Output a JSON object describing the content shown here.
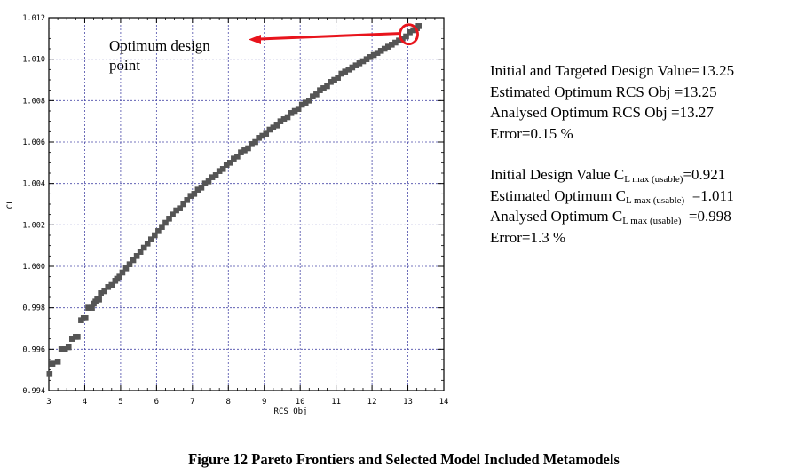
{
  "chart_data": {
    "type": "scatter",
    "title": "",
    "xlabel": "RCS_Obj",
    "ylabel": "CL",
    "xlim": [
      3,
      14
    ],
    "ylim": [
      0.994,
      1.012
    ],
    "xticks": [
      "3",
      "4",
      "5",
      "6",
      "7",
      "8",
      "9",
      "10",
      "11",
      "12",
      "13",
      "14"
    ],
    "yticks": [
      "0.994",
      "0.996",
      "0.998",
      "1.000",
      "1.002",
      "1.004",
      "1.006",
      "1.008",
      "1.010",
      "1.012"
    ],
    "grid": true,
    "series": [
      {
        "marker": "square",
        "color": "#555555",
        "x": [
          3.02,
          3.1,
          3.25,
          3.35,
          3.45,
          3.55,
          3.65,
          3.75,
          3.8,
          3.9,
          3.97,
          4.02,
          4.1,
          4.2,
          4.25,
          4.3,
          4.35,
          4.4,
          4.45,
          4.55,
          4.65,
          4.75,
          4.85,
          4.9,
          4.97,
          5.05,
          5.15,
          5.25,
          5.35,
          5.45,
          5.55,
          5.65,
          5.75,
          5.85,
          5.95,
          6.05,
          6.15,
          6.25,
          6.35,
          6.45,
          6.55,
          6.65,
          6.75,
          6.85,
          6.95,
          7.05,
          7.15,
          7.25,
          7.35,
          7.45,
          7.55,
          7.65,
          7.75,
          7.85,
          7.95,
          8.05,
          8.15,
          8.25,
          8.35,
          8.45,
          8.55,
          8.65,
          8.75,
          8.85,
          8.95,
          9.05,
          9.15,
          9.25,
          9.35,
          9.45,
          9.55,
          9.65,
          9.75,
          9.85,
          9.95,
          10.05,
          10.15,
          10.25,
          10.35,
          10.45,
          10.55,
          10.65,
          10.75,
          10.85,
          10.95,
          11.05,
          11.15,
          11.25,
          11.35,
          11.45,
          11.55,
          11.65,
          11.75,
          11.85,
          11.95,
          12.05,
          12.15,
          12.25,
          12.35,
          12.45,
          12.55,
          12.65,
          12.75,
          12.85,
          12.95,
          13.05,
          13.15,
          13.25,
          13.3
        ],
        "y": [
          0.9948,
          0.9953,
          0.9954,
          0.996,
          0.996,
          0.9961,
          0.9965,
          0.9966,
          0.9966,
          0.9974,
          0.9975,
          0.9975,
          0.998,
          0.998,
          0.9982,
          0.9983,
          0.9984,
          0.9984,
          0.9987,
          0.9988,
          0.999,
          0.9991,
          0.9993,
          0.9994,
          0.9995,
          0.9997,
          0.9999,
          1.0001,
          1.0003,
          1.0005,
          1.0007,
          1.0009,
          1.0011,
          1.0013,
          1.0015,
          1.0017,
          1.0019,
          1.0021,
          1.0023,
          1.0025,
          1.0027,
          1.0028,
          1.003,
          1.0032,
          1.0034,
          1.0035,
          1.0037,
          1.0038,
          1.004,
          1.0041,
          1.0043,
          1.0044,
          1.0046,
          1.0047,
          1.0049,
          1.005,
          1.0052,
          1.0053,
          1.0055,
          1.0056,
          1.0057,
          1.0059,
          1.006,
          1.0062,
          1.0063,
          1.0064,
          1.0066,
          1.0067,
          1.0068,
          1.007,
          1.0071,
          1.0072,
          1.0074,
          1.0075,
          1.0076,
          1.0078,
          1.0079,
          1.008,
          1.0082,
          1.0083,
          1.0085,
          1.0086,
          1.0087,
          1.0089,
          1.009,
          1.0091,
          1.0093,
          1.0094,
          1.0095,
          1.0096,
          1.0097,
          1.0098,
          1.0099,
          1.01,
          1.0101,
          1.0102,
          1.0103,
          1.0104,
          1.0105,
          1.0106,
          1.0107,
          1.0108,
          1.0109,
          1.011,
          1.0111,
          1.0113,
          1.0114,
          1.0115,
          1.0116
        ]
      }
    ],
    "annotation": {
      "text": "Optimum design point",
      "target": {
        "x": 13.0,
        "y": 1.0112
      },
      "arrow_color": "#e8141c",
      "circle_color": "#e8141c"
    }
  },
  "annotation_text": "Optimum design point",
  "results": {
    "line1": "Initial and Targeted Design Value=13.25",
    "line2": "Estimated Optimum RCS Obj =13.25",
    "line3": "Analysed Optimum RCS Obj  =13.27",
    "line4": "Error=0.15 %",
    "cl_prefix_a": "Initial Design Value C",
    "cl_prefix_b": "Estimated Optimum C",
    "cl_prefix_c": "Analysed Optimum C",
    "cl_sub_a": "L max (usable)",
    "cl_sub_b": "L max (usable)",
    "cl_sub_c": "L max (usable)",
    "cl_val_a": "=0.921",
    "cl_val_b": "  =1.011",
    "cl_val_c": "  =0.998",
    "line8": "Error=1.3 %"
  },
  "caption": "Figure 12 Pareto Frontiers and Selected Model Included Metamodels"
}
